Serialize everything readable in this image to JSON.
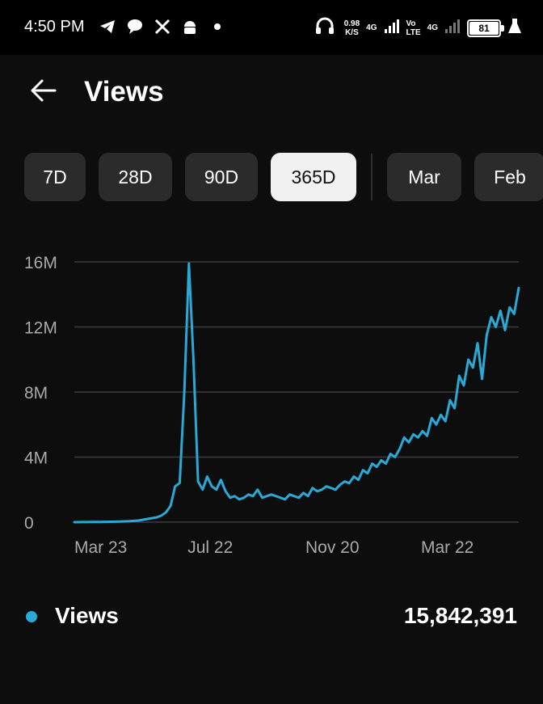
{
  "status_bar": {
    "time": "4:50 PM",
    "speed_value": "0.98",
    "speed_unit": "K/S",
    "net1": "4G",
    "net2_top": "Vo",
    "net2_bottom": "LTE",
    "net3": "4G",
    "battery": "81",
    "icons": [
      "telegram-icon",
      "chat-bubble-icon",
      "x-logo-icon",
      "android-icon",
      "dot-icon",
      "headphones-icon",
      "signal-icon",
      "battery-icon",
      "flask-icon"
    ]
  },
  "header": {
    "title": "Views",
    "back_icon": "back-arrow-icon"
  },
  "ranges": [
    {
      "label": "7D",
      "selected": false
    },
    {
      "label": "28D",
      "selected": false
    },
    {
      "label": "90D",
      "selected": false
    },
    {
      "label": "365D",
      "selected": true
    },
    {
      "label": "Mar",
      "selected": false
    },
    {
      "label": "Feb",
      "selected": false
    }
  ],
  "colors": {
    "series": "#29a9d6",
    "background": "#0d0d0d",
    "grid": "#3d3d3d",
    "axis_text": "#a9a9a9"
  },
  "chart_data": {
    "type": "line",
    "x_tick_labels": [
      "Mar 23",
      "Jul 22",
      "Nov 20",
      "Mar 22"
    ],
    "y_tick_labels": [
      "0",
      "4M",
      "8M",
      "12M",
      "16M"
    ],
    "y_ticks": [
      0,
      4000000,
      8000000,
      12000000,
      16000000
    ],
    "ylim": [
      0,
      16000000
    ],
    "grid": true,
    "series": [
      {
        "name": "Views",
        "values": [
          0,
          2000,
          3000,
          5000,
          8000,
          10000,
          15000,
          20000,
          25000,
          30000,
          40000,
          50000,
          60000,
          80000,
          100000,
          150000,
          200000,
          250000,
          300000,
          400000,
          600000,
          1000000,
          2200000,
          2400000,
          8000000,
          15900000,
          10000000,
          2500000,
          2000000,
          2800000,
          2200000,
          2000000,
          2600000,
          1900000,
          1500000,
          1600000,
          1400000,
          1500000,
          1700000,
          1600000,
          2000000,
          1500000,
          1600000,
          1700000,
          1600000,
          1500000,
          1400000,
          1700000,
          1600000,
          1500000,
          1800000,
          1600000,
          2100000,
          1900000,
          2000000,
          2200000,
          2100000,
          2000000,
          2300000,
          2500000,
          2400000,
          2800000,
          2600000,
          3200000,
          3000000,
          3600000,
          3400000,
          3800000,
          3600000,
          4200000,
          4000000,
          4500000,
          5200000,
          4900000,
          5400000,
          5200000,
          5600000,
          5300000,
          6400000,
          6000000,
          6600000,
          6200000,
          7500000,
          7000000,
          9000000,
          8400000,
          10000000,
          9500000,
          11000000,
          8800000,
          11500000,
          12600000,
          12000000,
          13000000,
          11800000,
          13200000,
          12800000,
          14400000
        ]
      }
    ]
  },
  "legend": {
    "label": "Views",
    "total": "15,842,391"
  }
}
